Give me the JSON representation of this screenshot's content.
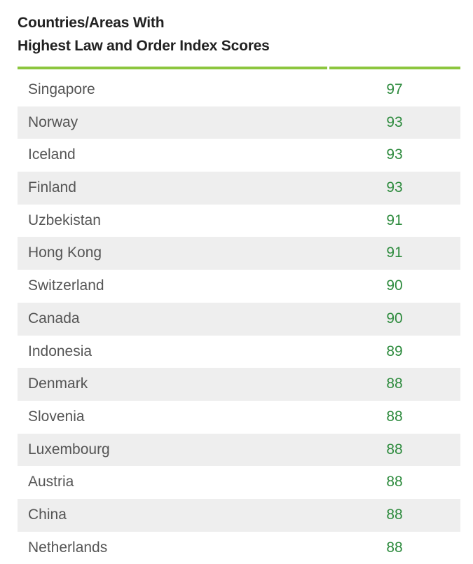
{
  "title_lines": [
    "Countries/Areas With",
    "Highest Law and Order Index Scores"
  ],
  "colors": {
    "accent_rule": "#8cc63e",
    "score_text": "#2e8b3e",
    "country_text": "#555555",
    "stripe": "#eeeeee"
  },
  "chart_data": {
    "type": "table",
    "title": "Countries/Areas With Highest Law and Order Index Scores",
    "columns": [
      "",
      ""
    ],
    "rows": [
      {
        "country": "Singapore",
        "score": "97"
      },
      {
        "country": "Norway",
        "score": "93"
      },
      {
        "country": "Iceland",
        "score": "93"
      },
      {
        "country": "Finland",
        "score": "93"
      },
      {
        "country": "Uzbekistan",
        "score": "91"
      },
      {
        "country": "Hong Kong",
        "score": "91"
      },
      {
        "country": "Switzerland",
        "score": "90"
      },
      {
        "country": "Canada",
        "score": "90"
      },
      {
        "country": "Indonesia",
        "score": "89"
      },
      {
        "country": "Denmark",
        "score": "88"
      },
      {
        "country": "Slovenia",
        "score": "88"
      },
      {
        "country": "Luxembourg",
        "score": "88"
      },
      {
        "country": "Austria",
        "score": "88"
      },
      {
        "country": "China",
        "score": "88"
      },
      {
        "country": "Netherlands",
        "score": "88"
      }
    ]
  }
}
